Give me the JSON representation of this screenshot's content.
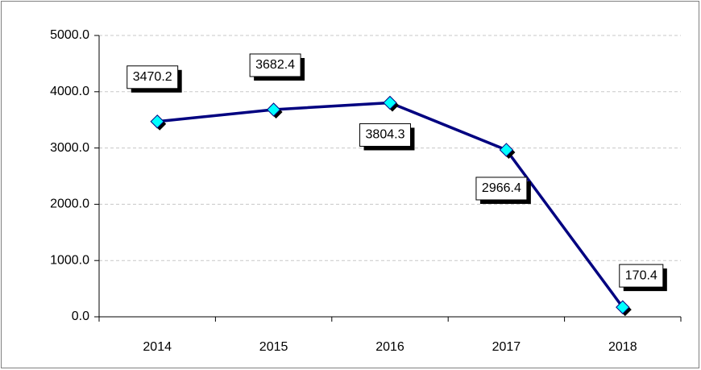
{
  "chart_data": {
    "type": "line",
    "categories": [
      "2014",
      "2015",
      "2016",
      "2017",
      "2018"
    ],
    "series": [
      {
        "color": "#000080",
        "marker_color": "#00ffff",
        "values": [
          3470.2,
          3682.4,
          3804.3,
          2966.4,
          170.4
        ]
      }
    ],
    "ylim": [
      0,
      5000
    ],
    "yticks": [
      {
        "value": 0,
        "label": "0.0"
      },
      {
        "value": 1000,
        "label": "1000.0"
      },
      {
        "value": 2000,
        "label": "2000.0"
      },
      {
        "value": 3000,
        "label": "3000.0"
      },
      {
        "value": 4000,
        "label": "4000.0"
      },
      {
        "value": 5000,
        "label": "5000.0"
      }
    ],
    "grid": true
  }
}
